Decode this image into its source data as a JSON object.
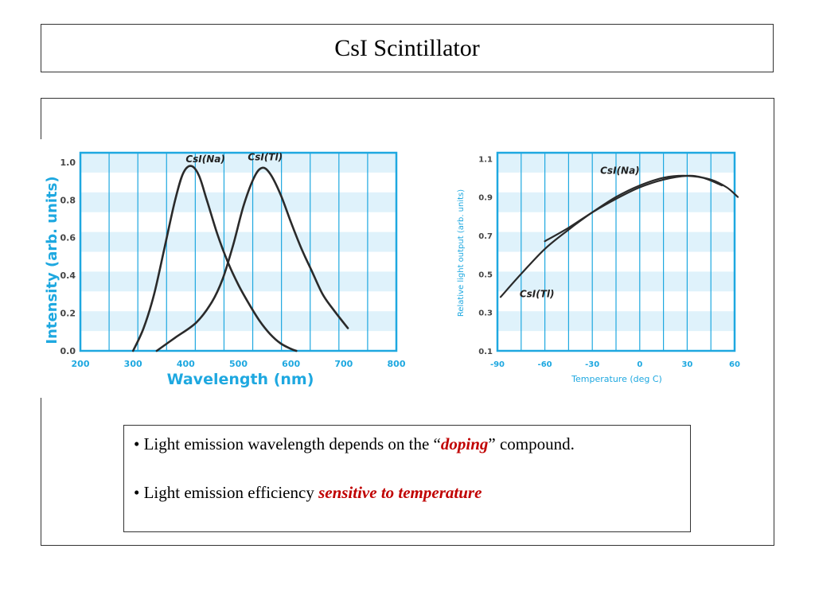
{
  "slide": {
    "title": "CsI Scintillator",
    "bullets": [
      {
        "prefix": "• Light emission wavelength depends on the “",
        "emphasis": "doping",
        "suffix": "” compound."
      },
      {
        "prefix": "• Light emission efficiency ",
        "emphasis": "sensitive to temperature",
        "suffix": ""
      }
    ]
  },
  "colors": {
    "axis_blue": "#1ea8e0",
    "grid_band": "#dff2fb",
    "curve": "#2a2a2a",
    "emphasis_red": "#c00000"
  },
  "chart_data": [
    {
      "type": "line",
      "xlabel": "Wavelength (nm)",
      "ylabel": "Intensity (arb. units)",
      "xlim": [
        200,
        800
      ],
      "ylim": [
        0,
        1.05
      ],
      "xticks": [
        200,
        300,
        400,
        500,
        600,
        700,
        800
      ],
      "xtick_labels": [
        "200",
        "300",
        "400",
        "500",
        "600",
        "700",
        "800"
      ],
      "yticks": [
        0.0,
        0.2,
        0.4,
        0.6,
        0.8,
        1.0
      ],
      "ytick_labels": [
        "0.0",
        "0.2",
        "0.4",
        "0.6",
        "0.8",
        "1.0"
      ],
      "grid": true,
      "series": [
        {
          "name": "CsI(Na)",
          "x": [
            300,
            320,
            340,
            360,
            380,
            395,
            410,
            425,
            440,
            460,
            480,
            500,
            520,
            540,
            560,
            580,
            600,
            610
          ],
          "y": [
            0.0,
            0.12,
            0.3,
            0.55,
            0.8,
            0.94,
            0.98,
            0.93,
            0.8,
            0.62,
            0.47,
            0.35,
            0.25,
            0.16,
            0.09,
            0.04,
            0.01,
            0.0
          ]
        },
        {
          "name": "CsI(Tl)",
          "x": [
            345,
            380,
            420,
            450,
            470,
            490,
            510,
            530,
            545,
            560,
            580,
            600,
            620,
            640,
            660,
            680,
            708
          ],
          "y": [
            0.0,
            0.07,
            0.15,
            0.26,
            0.38,
            0.56,
            0.77,
            0.92,
            0.97,
            0.94,
            0.83,
            0.68,
            0.54,
            0.42,
            0.3,
            0.22,
            0.12
          ]
        }
      ],
      "annotations": [
        {
          "text": "CsI(Na)",
          "x": 400,
          "y": 1.0
        },
        {
          "text": "CsI(Tl)",
          "x": 518,
          "y": 1.01
        }
      ]
    },
    {
      "type": "line",
      "xlabel": "Temperature (deg C)",
      "ylabel": "Relative light output (arb. units)",
      "xlim": [
        -90,
        60
      ],
      "ylim": [
        0.1,
        1.13
      ],
      "xticks": [
        -90,
        -60,
        -30,
        0,
        30,
        60
      ],
      "xtick_labels": [
        "-90",
        "-60",
        "-30",
        "0",
        "30",
        "60"
      ],
      "yticks": [
        0.1,
        0.3,
        0.5,
        0.7,
        0.9,
        1.1
      ],
      "ytick_labels": [
        "0.1",
        "0.3",
        "0.5",
        "0.7",
        "0.9",
        "1.1"
      ],
      "grid": true,
      "series": [
        {
          "name": "CsI(Tl)",
          "x": [
            -88,
            -75,
            -60,
            -45,
            -30,
            -15,
            0,
            15,
            30,
            45,
            55,
            62
          ],
          "y": [
            0.38,
            0.5,
            0.63,
            0.73,
            0.82,
            0.9,
            0.96,
            1.0,
            1.01,
            0.99,
            0.95,
            0.9
          ]
        },
        {
          "name": "CsI(Na)",
          "x": [
            -60,
            -45,
            -30,
            -15,
            0,
            15,
            30,
            40,
            52
          ],
          "y": [
            0.67,
            0.74,
            0.82,
            0.89,
            0.95,
            0.99,
            1.01,
            1.0,
            0.96
          ]
        }
      ],
      "annotations": [
        {
          "text": "CsI(Na)",
          "x": -25,
          "y": 1.02
        },
        {
          "text": "CsI(Tl)",
          "x": -76,
          "y": 0.38
        }
      ]
    }
  ]
}
